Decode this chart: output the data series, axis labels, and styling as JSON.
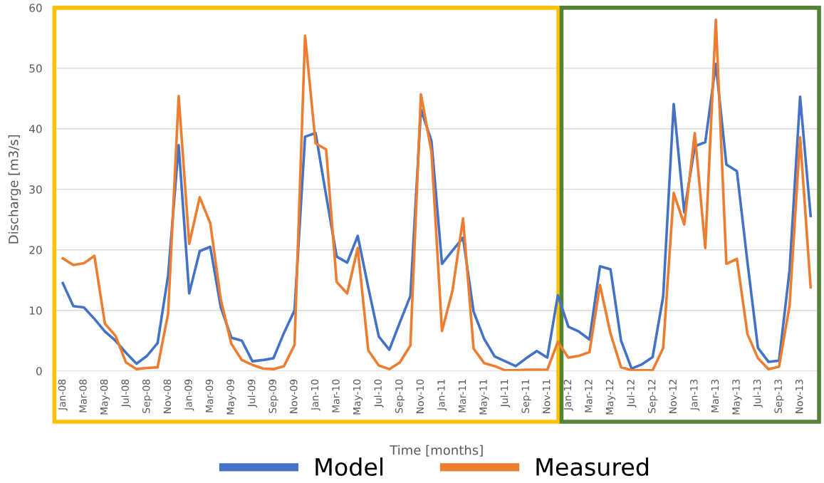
{
  "chart_data": {
    "type": "line",
    "xlabel": "Time [months]",
    "ylabel": "Discharge [m3/s]",
    "categories": [
      "Jan-08",
      null,
      "Mar-08",
      null,
      "May-08",
      null,
      "Jul-08",
      null,
      "Sep-08",
      null,
      "Nov-08",
      null,
      "Jan-09",
      null,
      "Mar-09",
      null,
      "May-09",
      null,
      "Jul-09",
      null,
      "Sep-09",
      null,
      "Nov-09",
      null,
      "Jan-10",
      null,
      "Mar-10",
      null,
      "May-10",
      null,
      "Jul-10",
      null,
      "Sep-10",
      null,
      "Nov-10",
      null,
      "Jan-11",
      null,
      "Mar-11",
      null,
      "May-11",
      null,
      "Jul-11",
      null,
      "Sep-11",
      null,
      "Nov-11",
      null,
      "Jan-12",
      null,
      "Mar-12",
      null,
      "May-12",
      null,
      "Jul-12",
      null,
      "Sep-12",
      null,
      "Nov-12",
      null,
      "Jan-13",
      null,
      "Mar-13",
      null,
      "May-13",
      null,
      "Jul-13",
      null,
      "Sep-13",
      null,
      "Nov-13",
      null
    ],
    "series": [
      {
        "name": "Model",
        "color": "#4472c4",
        "values": [
          14.5,
          10.7,
          10.5,
          8.6,
          6.5,
          5.0,
          3.0,
          1.2,
          2.5,
          4.6,
          15.8,
          37.3,
          12.8,
          19.8,
          20.5,
          10.5,
          5.5,
          5.0,
          1.6,
          1.8,
          2.1,
          6.3,
          10.0,
          38.7,
          39.3,
          29.0,
          18.9,
          17.9,
          22.3,
          13.8,
          5.7,
          3.5,
          8.0,
          12.4,
          43.2,
          38.0,
          17.7,
          19.9,
          22.0,
          9.8,
          5.3,
          2.4,
          1.6,
          0.8,
          2.1,
          3.3,
          2.2,
          12.5,
          7.3,
          6.5,
          5.2,
          17.3,
          16.8,
          5.0,
          0.4,
          1.1,
          2.3,
          12.3,
          44.1,
          26.2,
          37.1,
          37.8,
          50.7,
          34.1,
          33.0,
          18.0,
          3.8,
          1.5,
          1.7,
          16.6,
          45.3,
          25.6
        ]
      },
      {
        "name": "Measured",
        "color": "#ed7d31",
        "values": [
          18.6,
          17.5,
          17.8,
          19.0,
          7.8,
          5.8,
          1.4,
          0.3,
          0.5,
          0.6,
          9.5,
          45.4,
          21.0,
          28.7,
          24.4,
          11.8,
          4.5,
          1.8,
          1.0,
          0.4,
          0.3,
          0.8,
          4.3,
          55.4,
          37.6,
          36.6,
          14.7,
          12.8,
          20.3,
          3.4,
          0.9,
          0.3,
          1.4,
          4.2,
          45.7,
          36.2,
          6.6,
          13.3,
          25.2,
          3.7,
          1.3,
          0.8,
          0.1,
          0.1,
          0.2,
          0.2,
          0.2,
          4.8,
          2.2,
          2.5,
          3.1,
          14.2,
          6.2,
          0.6,
          0.1,
          0.1,
          0.1,
          3.8,
          29.4,
          24.2,
          39.3,
          20.3,
          58.0,
          17.7,
          18.5,
          6.1,
          2.1,
          0.3,
          0.7,
          10.8,
          38.6,
          13.8
        ]
      }
    ],
    "ylim": [
      0,
      60
    ],
    "yticks": [
      0,
      10,
      20,
      30,
      40,
      50,
      60
    ],
    "grid": "y",
    "legend": "bottom",
    "marker": "none",
    "line_style": "solid"
  }
}
